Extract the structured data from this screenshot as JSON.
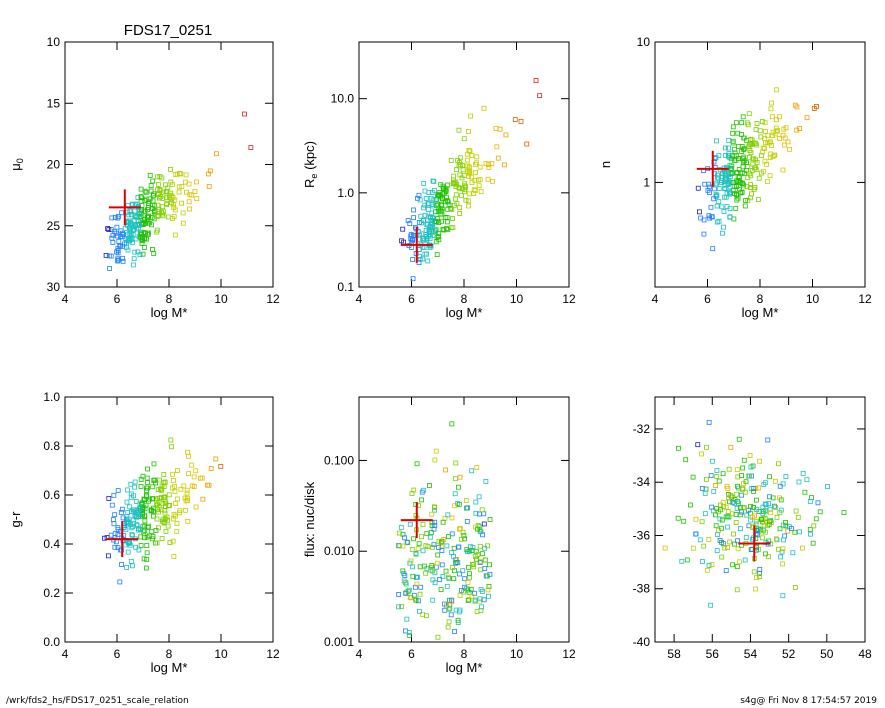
{
  "figure": {
    "title": "FDS17_0251",
    "footer_left": "/wrk/fds2_hs/FDS17_0251_scale_relation",
    "footer_right": "s4g@  Fri Nov  8 17:54:57 2019"
  },
  "chart_data": [
    {
      "type": "scatter",
      "id": "mu0",
      "xlabel": "log M*",
      "ylabel": "μ",
      "ylabel_sub": "0",
      "xlim": [
        4,
        12
      ],
      "ylim": [
        30,
        10
      ],
      "log_y": false,
      "xticks": [
        4,
        6,
        8,
        10,
        12
      ],
      "yticks": [
        10,
        15,
        20,
        25,
        30
      ],
      "xtick_labels": [
        "4",
        "6",
        "8",
        "10",
        "12"
      ],
      "ytick_labels": [
        "10",
        "15",
        "20",
        "25",
        "30"
      ],
      "target": {
        "x": 6.3,
        "y": 23.5
      }
    },
    {
      "type": "scatter",
      "id": "re",
      "xlabel": "log M*",
      "ylabel": "R",
      "ylabel_sub": "e",
      "ylabel_suffix": " (kpc)",
      "xlim": [
        4,
        12
      ],
      "ylim": [
        0.1,
        40
      ],
      "log_y": true,
      "xticks": [
        4,
        6,
        8,
        10,
        12
      ],
      "yticks": [
        0.1,
        1.0,
        10.0
      ],
      "xtick_labels": [
        "4",
        "6",
        "8",
        "10",
        "12"
      ],
      "ytick_labels": [
        "0.1",
        "1.0",
        "10.0"
      ],
      "target": {
        "x": 6.2,
        "y": 0.28
      }
    },
    {
      "type": "scatter",
      "id": "n",
      "xlabel": "log M*",
      "ylabel": "n",
      "xlim": [
        4,
        12
      ],
      "ylim": [
        0.18,
        10
      ],
      "log_y": true,
      "xticks": [
        4,
        6,
        8,
        10,
        12
      ],
      "yticks": [
        1,
        10
      ],
      "xtick_labels": [
        "4",
        "6",
        "8",
        "10",
        "12"
      ],
      "ytick_labels": [
        "1",
        "10"
      ],
      "target": {
        "x": 6.2,
        "y": 1.25
      }
    },
    {
      "type": "scatter",
      "id": "gr",
      "xlabel": "log M*",
      "ylabel": "g-r",
      "xlim": [
        4,
        12
      ],
      "ylim": [
        0.0,
        1.0
      ],
      "log_y": false,
      "xticks": [
        4,
        6,
        8,
        10,
        12
      ],
      "yticks": [
        0.0,
        0.2,
        0.4,
        0.6,
        0.8,
        1.0
      ],
      "xtick_labels": [
        "4",
        "6",
        "8",
        "10",
        "12"
      ],
      "ytick_labels": [
        "0.0",
        "0.2",
        "0.4",
        "0.6",
        "0.8",
        "1.0"
      ],
      "target": {
        "x": 6.2,
        "y": 0.42
      }
    },
    {
      "type": "scatter",
      "id": "flux",
      "xlabel": "log M*",
      "ylabel": "flux: nuc/disk",
      "xlim": [
        4,
        12
      ],
      "ylim": [
        0.001,
        0.5
      ],
      "log_y": true,
      "xticks": [
        4,
        6,
        8,
        10,
        12
      ],
      "yticks": [
        0.001,
        0.01,
        0.1
      ],
      "xtick_labels": [
        "4",
        "6",
        "8",
        "10",
        "12"
      ],
      "ytick_labels": [
        "0.001",
        "0.010",
        "0.100"
      ],
      "target": {
        "x": 6.2,
        "y": 0.022
      }
    },
    {
      "type": "scatter",
      "id": "radec",
      "xlabel": "",
      "ylabel": "",
      "xlim": [
        59,
        48
      ],
      "ylim": [
        -40,
        -30.8
      ],
      "log_y": false,
      "xticks": [
        58,
        56,
        54,
        52,
        50,
        48
      ],
      "yticks": [
        -40,
        -38,
        -36,
        -34,
        -32
      ],
      "xtick_labels": [
        "58",
        "56",
        "54",
        "52",
        "50",
        "48"
      ],
      "ytick_labels": [
        "-40",
        "-38",
        "-36",
        "-34",
        "-32"
      ],
      "target": {
        "x": 53.8,
        "y": -36.3
      }
    }
  ]
}
